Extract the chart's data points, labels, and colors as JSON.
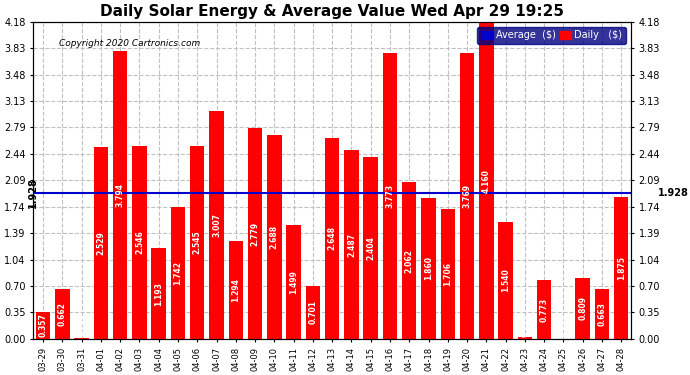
{
  "title": "Daily Solar Energy & Average Value Wed Apr 29 19:25",
  "copyright": "Copyright 2020 Cartronics.com",
  "categories": [
    "03-29",
    "03-30",
    "03-31",
    "04-01",
    "04-02",
    "04-03",
    "04-04",
    "04-05",
    "04-06",
    "04-07",
    "04-08",
    "04-09",
    "04-10",
    "04-11",
    "04-12",
    "04-13",
    "04-14",
    "04-15",
    "04-16",
    "04-17",
    "04-18",
    "04-19",
    "04-20",
    "04-21",
    "04-22",
    "04-23",
    "04-24",
    "04-25",
    "04-26",
    "04-27",
    "04-28"
  ],
  "values": [
    0.357,
    0.662,
    0.013,
    2.529,
    3.794,
    2.546,
    1.193,
    1.742,
    2.545,
    3.007,
    1.294,
    2.779,
    2.688,
    1.499,
    0.701,
    2.648,
    2.487,
    2.404,
    3.773,
    2.062,
    1.86,
    1.706,
    3.769,
    4.16,
    1.54,
    0.02,
    0.773,
    0.0,
    0.809,
    0.663,
    1.875
  ],
  "average": 1.928,
  "bar_color": "#FF0000",
  "avg_line_color": "#0000CD",
  "background_color": "#FFFFFF",
  "grid_color": "#C0C0C0",
  "ylim": [
    0,
    4.18
  ],
  "yticks": [
    0.0,
    0.35,
    0.7,
    1.04,
    1.39,
    1.74,
    2.09,
    2.44,
    2.79,
    3.13,
    3.48,
    3.83,
    4.18
  ],
  "avg_label": "1.928",
  "legend_avg_color": "#0000CD",
  "legend_daily_color": "#FF0000",
  "legend_avg_text": "Average  ($)",
  "legend_daily_text": "Daily   ($)",
  "title_fontsize": 11,
  "tick_fontsize": 7,
  "bar_label_fontsize": 5.5
}
